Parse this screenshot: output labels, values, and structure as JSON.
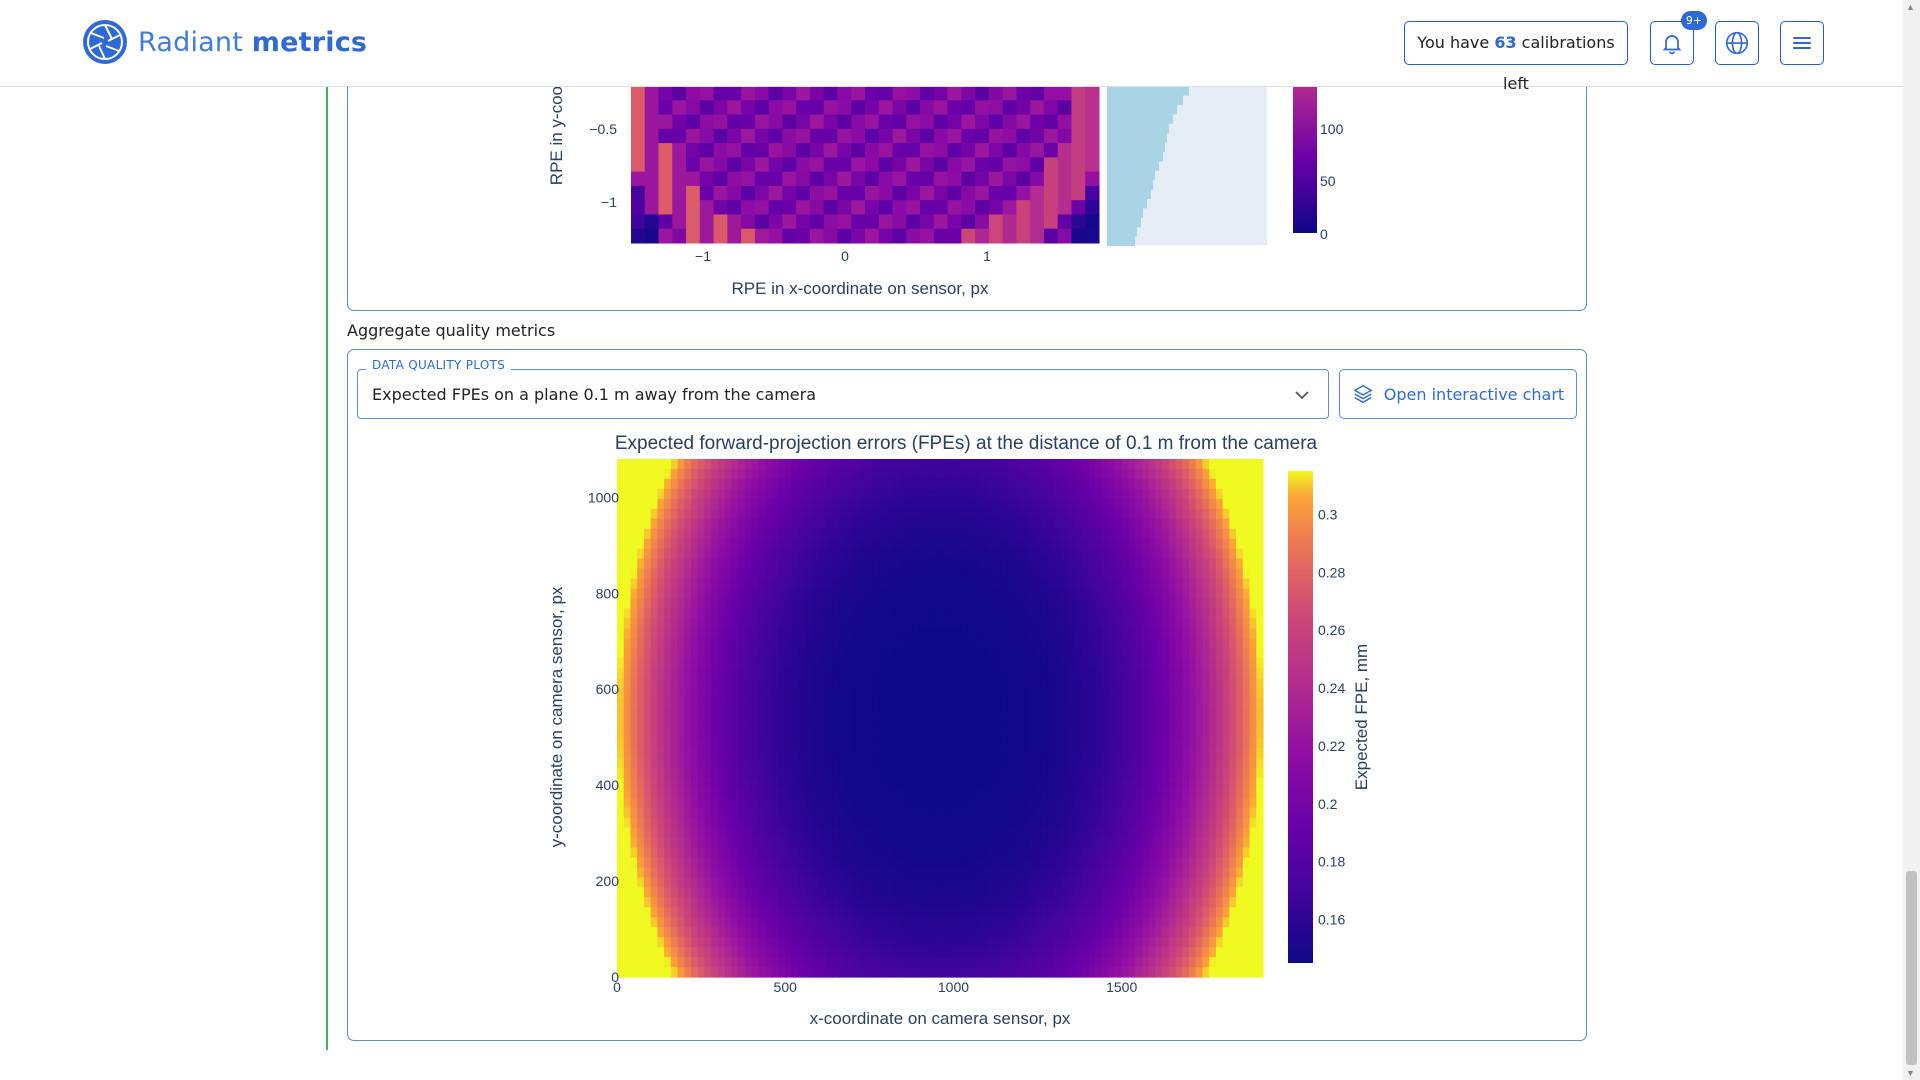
{
  "header": {
    "brand_light": "Radiant",
    "brand_bold": "metrics",
    "calibrations_prefix": "You have",
    "calibrations_count": "63",
    "calibrations_suffix": "calibrations left",
    "notifications_badge": "9+",
    "accent_color": "#2f69d6"
  },
  "top_chart": {
    "ylabel": "RPE in y-coo",
    "xlabel": "RPE in x-coordinate on sensor, px",
    "y_ticks": [
      "−0.5",
      "−1"
    ],
    "x_ticks": [
      "−1",
      "0",
      "1"
    ],
    "colorbar_ticks": [
      "100",
      "50",
      "0"
    ]
  },
  "aggregate": {
    "section_title": "Aggregate quality metrics",
    "select_label": "DATA QUALITY PLOTS",
    "select_value": "Expected FPEs on a plane 0.1 m away from the camera",
    "open_button": "Open interactive chart"
  },
  "chart_data": {
    "type": "heatmap",
    "title": "Expected forward-projection errors (FPEs) at the distance of 0.1 m from the camera",
    "xlabel": "x-coordinate on camera sensor, px",
    "ylabel": "y-coordinate on camera sensor, px",
    "colorbar_label": "Expected FPE, mm",
    "x_range": [
      0,
      1920
    ],
    "y_range": [
      0,
      1080
    ],
    "x_ticks": [
      "0",
      "500",
      "1000",
      "1500"
    ],
    "y_ticks": [
      "0",
      "200",
      "400",
      "600",
      "800",
      "1000"
    ],
    "colorbar_range": [
      0.145,
      0.315
    ],
    "colorbar_ticks": [
      "0.16",
      "0.18",
      "0.2",
      "0.22",
      "0.24",
      "0.26",
      "0.28",
      "0.3"
    ],
    "colorscale": "plasma",
    "center_value": 0.145,
    "edge_value": 0.315
  }
}
